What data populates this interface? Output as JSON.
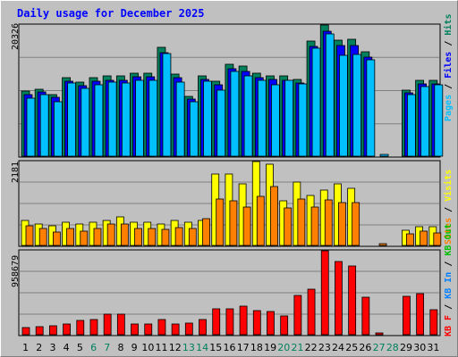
{
  "colors": {
    "hits": "#00805c",
    "files": "#0000ff",
    "pages": "#00c0ff",
    "visits": "#ffff00",
    "sites": "#ff8000",
    "kb_out": "#00c000",
    "kb_in": "#0080ff",
    "kb_f": "#ff0000",
    "weekend_day": "#00805c",
    "weekday": "#000000",
    "background": "#c0c0c0",
    "title": "#0000ff"
  },
  "chart_data": {
    "type": "bar",
    "title": "Daily usage for December 2025",
    "days": [
      "1",
      "2",
      "3",
      "4",
      "5",
      "6",
      "7",
      "8",
      "9",
      "10",
      "11",
      "12",
      "13",
      "14",
      "15",
      "16",
      "17",
      "18",
      "19",
      "20",
      "21",
      "22",
      "23",
      "24",
      "25",
      "26",
      "27",
      "28",
      "29",
      "30",
      "31"
    ],
    "weekend_days": [
      "6",
      "7",
      "13",
      "14",
      "20",
      "21",
      "27",
      "28"
    ],
    "panels": [
      {
        "id": "hits",
        "max_label": "20326",
        "ymax": 20326,
        "legend": [
          "Hits",
          "Files",
          "Pages"
        ],
        "separator": "/",
        "series": [
          {
            "name": "Hits",
            "values": [
              10100,
              10400,
              9600,
              12200,
              11500,
              12200,
              12400,
              12400,
              12900,
              12900,
              16900,
              12700,
              9300,
              12500,
              11600,
              14300,
              13900,
              12800,
              12500,
              12400,
              11900,
              17900,
              20326,
              18000,
              18100,
              16200,
              null,
              null,
              10300,
              11800,
              11800
            ]
          },
          {
            "name": "Files",
            "values": [
              9600,
              9900,
              9100,
              11600,
              10900,
              11600,
              11800,
              11800,
              12300,
              12300,
              16100,
              12100,
              8900,
              11900,
              11000,
              13600,
              13200,
              12200,
              11900,
              11800,
              11300,
              17000,
              19300,
              17100,
              17200,
              15400,
              null,
              null,
              9800,
              11200,
              11200
            ]
          },
          {
            "name": "Pages",
            "values": [
              9000,
              9500,
              8500,
              11300,
              10500,
              11000,
              11500,
              11300,
              11700,
              11700,
              15900,
              11500,
              8500,
              11600,
              10200,
              13200,
              12400,
              11700,
              11000,
              11700,
              11200,
              16800,
              19000,
              15600,
              15700,
              14900,
              300,
              null,
              9500,
              10800,
              11000
            ]
          }
        ]
      },
      {
        "id": "visits",
        "max_label": "2181",
        "ymax": 2181,
        "legend": [
          "Visits",
          "Sites"
        ],
        "separator": "/",
        "series": [
          {
            "name": "Visits",
            "values": [
              650,
              550,
              500,
              600,
              550,
              600,
              650,
              750,
              600,
              600,
              550,
              650,
              600,
              650,
              1850,
              1850,
              1600,
              2181,
              2120,
              1150,
              1640,
              1300,
              1440,
              1590,
              1480,
              null,
              null,
              null,
              400,
              480,
              480
            ]
          },
          {
            "name": "Sites",
            "values": [
              500,
              450,
              350,
              440,
              380,
              430,
              550,
              560,
              450,
              450,
              420,
              460,
              450,
              700,
              1200,
              1150,
              1000,
              1270,
              1530,
              980,
              1200,
              1000,
              1180,
              1120,
              1120,
              null,
              50,
              null,
              300,
              380,
              320
            ]
          }
        ]
      },
      {
        "id": "kbytes",
        "max_label": "958679",
        "ymax": 958679,
        "legend": [
          "KB F",
          "KB In",
          "KB Out"
        ],
        "separator": "/",
        "series": [
          {
            "name": "KB F",
            "values": [
              85000,
              95000,
              105000,
              125000,
              165000,
              175000,
              235000,
              235000,
              125000,
              125000,
              175000,
              125000,
              135000,
              175000,
              295000,
              295000,
              325000,
              275000,
              265000,
              210000,
              445000,
              520000,
              958679,
              840000,
              790000,
              430000,
              20000,
              null,
              440000,
              470000,
              290000
            ]
          }
        ]
      }
    ]
  }
}
